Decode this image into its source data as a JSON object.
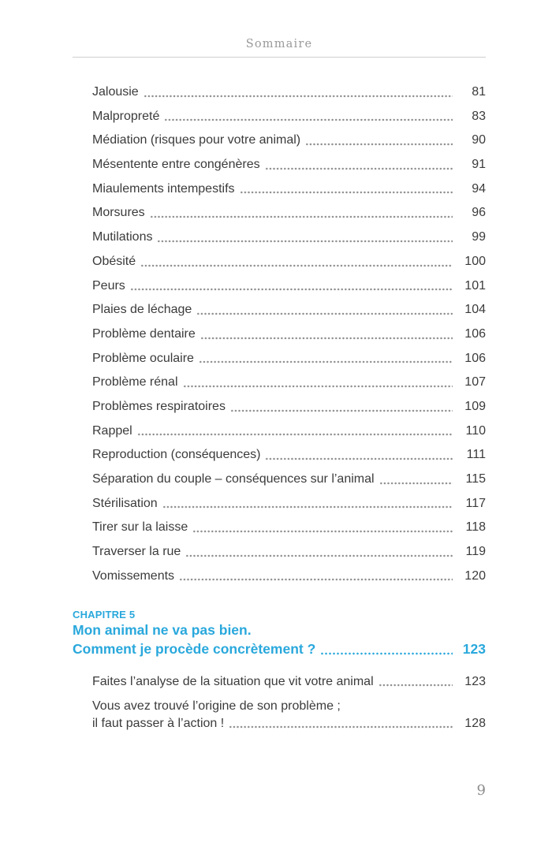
{
  "header": {
    "title": "Sommaire"
  },
  "footer": {
    "folio": "9"
  },
  "colors": {
    "accent": "#29a8dc",
    "text": "#3b3b3b",
    "dot_leader": "#8f8f8f",
    "header_gray": "#9a9a9a",
    "rule_gray": "#cfcfcf",
    "folio_gray": "#8c8c8c"
  },
  "toc": {
    "entries": [
      {
        "label": "Jalousie",
        "page": "81"
      },
      {
        "label": "Malpropreté",
        "page": "83"
      },
      {
        "label": "Médiation (risques pour votre animal)",
        "page": "90"
      },
      {
        "label": "Mésentente entre congénères",
        "page": "91"
      },
      {
        "label": "Miaulements intempestifs",
        "page": "94"
      },
      {
        "label": "Morsures",
        "page": "96"
      },
      {
        "label": "Mutilations",
        "page": "99"
      },
      {
        "label": "Obésité",
        "page": "100"
      },
      {
        "label": "Peurs",
        "page": "101"
      },
      {
        "label": "Plaies de léchage",
        "page": "104"
      },
      {
        "label": "Problème dentaire",
        "page": "106"
      },
      {
        "label": "Problème oculaire",
        "page": "106"
      },
      {
        "label": "Problème rénal",
        "page": "107"
      },
      {
        "label": "Problèmes respiratoires",
        "page": "109"
      },
      {
        "label": "Rappel",
        "page": "110"
      },
      {
        "label": "Reproduction (conséquences)",
        "page": "111"
      },
      {
        "label": "Séparation du couple – conséquences sur l’animal",
        "page": "115"
      },
      {
        "label": "Stérilisation",
        "page": "117"
      },
      {
        "label": "Tirer sur la laisse",
        "page": "118"
      },
      {
        "label": "Traverser la rue",
        "page": "119"
      },
      {
        "label": "Vomissements",
        "page": "120"
      }
    ],
    "chapter": {
      "kicker": "CHAPITRE 5",
      "title_line1": "Mon animal ne va pas bien.",
      "title_line2": "Comment je procède concrètement ?",
      "page": "123"
    },
    "chapter_entries": [
      {
        "lines": [
          "Faites l’analyse de la situation que vit votre animal"
        ],
        "page": "123"
      },
      {
        "lines": [
          "Vous avez trouvé l’origine de son problème ;",
          "il faut passer à l’action !"
        ],
        "page": "128"
      }
    ]
  }
}
